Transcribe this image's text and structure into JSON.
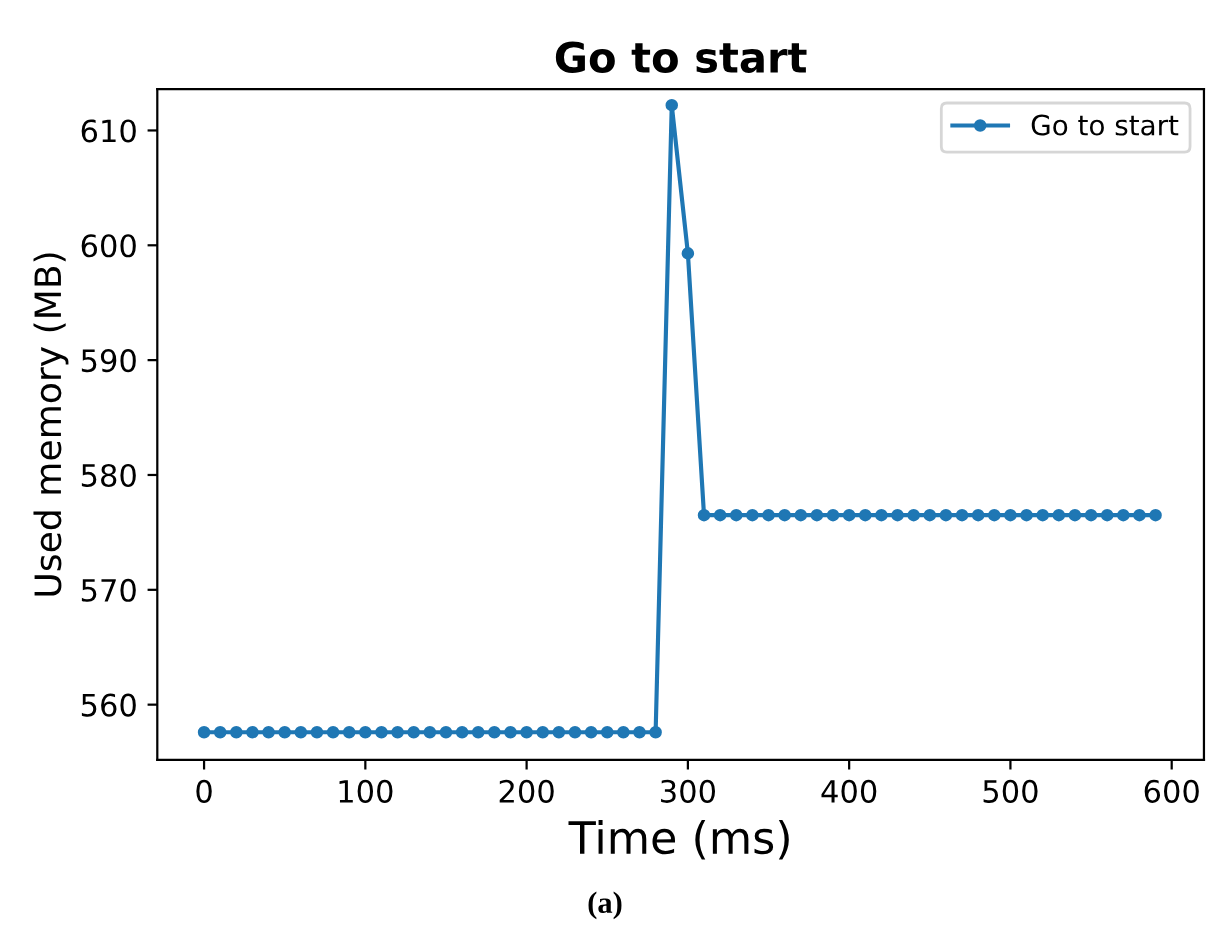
{
  "chart_data": {
    "type": "line",
    "title": "Go to start",
    "xlabel": "Time (ms)",
    "ylabel": "Used memory (MB)",
    "annotations": [
      "(a)"
    ],
    "x": [
      0,
      10,
      20,
      30,
      40,
      50,
      60,
      70,
      80,
      90,
      100,
      110,
      120,
      130,
      140,
      150,
      160,
      170,
      180,
      190,
      200,
      210,
      220,
      230,
      240,
      250,
      260,
      270,
      280,
      290,
      300,
      310,
      320,
      330,
      340,
      350,
      360,
      370,
      380,
      390,
      400,
      410,
      420,
      430,
      440,
      450,
      460,
      470,
      480,
      490,
      500,
      510,
      520,
      530,
      540,
      550,
      560,
      570,
      580,
      590
    ],
    "series": [
      {
        "name": "Go to start",
        "color": "#1f77b4",
        "values": [
          557.6,
          557.6,
          557.6,
          557.6,
          557.6,
          557.6,
          557.6,
          557.6,
          557.6,
          557.6,
          557.6,
          557.6,
          557.6,
          557.6,
          557.6,
          557.6,
          557.6,
          557.6,
          557.6,
          557.6,
          557.6,
          557.6,
          557.6,
          557.6,
          557.6,
          557.6,
          557.6,
          557.6,
          557.6,
          612.2,
          599.3,
          576.5,
          576.5,
          576.5,
          576.5,
          576.5,
          576.5,
          576.5,
          576.5,
          576.5,
          576.5,
          576.5,
          576.5,
          576.5,
          576.5,
          576.5,
          576.5,
          576.5,
          576.5,
          576.5,
          576.5,
          576.5,
          576.5,
          576.5,
          576.5,
          576.5,
          576.5,
          576.5,
          576.5,
          576.5
        ]
      }
    ],
    "xlim": [
      -29,
      620
    ],
    "ylim": [
      555.2,
      613.6
    ],
    "xticks": [
      0,
      100,
      200,
      300,
      400,
      500,
      600
    ],
    "yticks": [
      560,
      570,
      580,
      590,
      600,
      610
    ],
    "marker": "circle",
    "line_style": "solid",
    "legend": "top right",
    "grid": false
  }
}
